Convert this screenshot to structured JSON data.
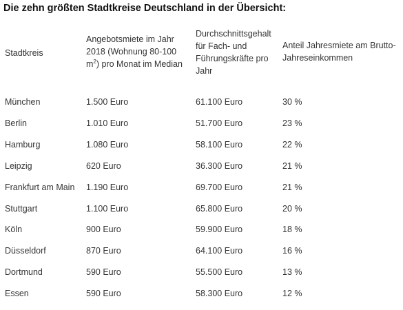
{
  "title": "Die zehn größten Stadtkreise Deutschland in der Übersicht:",
  "headers": {
    "city": "Stadtkreis",
    "rent_before_sup": "Angebotsmiete im Jahr 2018 (Wohnung 80-100 m",
    "rent_sup": "2",
    "rent_after_sup": ") pro Monat im Median",
    "salary": "Durchschnittsgehalt für Fach- und Führungskräfte pro Jahr",
    "share": "Anteil Jahresmiete am Brutto-Jahreseinkommen"
  },
  "rows": [
    {
      "city": "München",
      "rent": "1.500 Euro",
      "salary": "61.100 Euro",
      "share": "30 %"
    },
    {
      "city": "Berlin",
      "rent": "1.010 Euro",
      "salary": "51.700 Euro",
      "share": "23 %"
    },
    {
      "city": "Hamburg",
      "rent": "1.080 Euro",
      "salary": "58.100 Euro",
      "share": "22 %"
    },
    {
      "city": "Leipzig",
      "rent": "620 Euro",
      "salary": "36.300 Euro",
      "share": "21 %"
    },
    {
      "city": "Frankfurt am Main",
      "rent": "1.190 Euro",
      "salary": "69.700 Euro",
      "share": "21 %"
    },
    {
      "city": "Stuttgart",
      "rent": "1.100 Euro",
      "salary": "65.800 Euro",
      "share": "20 %"
    },
    {
      "city": "Köln",
      "rent": "900 Euro",
      "salary": "59.900 Euro",
      "share": "18 %"
    },
    {
      "city": "Düsseldorf",
      "rent": "870 Euro",
      "salary": "64.100 Euro",
      "share": "16 %"
    },
    {
      "city": "Dortmund",
      "rent": "590 Euro",
      "salary": "55.500 Euro",
      "share": "13 %"
    },
    {
      "city": "Essen",
      "rent": "590 Euro",
      "salary": "58.300 Euro",
      "share": "12 %"
    }
  ]
}
